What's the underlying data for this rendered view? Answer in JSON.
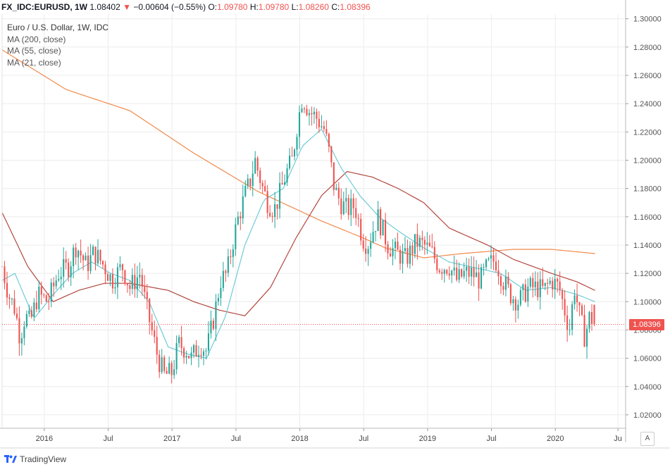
{
  "header": {
    "symbol": "FX_IDC:EURUSD, 1W",
    "last": "1.08402",
    "arrow": "▼",
    "change": "−0.00604 (−0.55%)",
    "o_label": "O:",
    "o_value": "1.09780",
    "h_label": "H:",
    "h_value": "1.09780",
    "l_label": "L:",
    "l_value": "1.08260",
    "c_label": "C:",
    "c_value": "1.08396"
  },
  "legend": {
    "title": "Euro / U.S. Dollar, 1W, IDC",
    "ma200": "MA (200, close)",
    "ma55": "MA (55, close)",
    "ma21": "MA (21, close)"
  },
  "price_tag": "1.08396",
  "scale_button": "A",
  "brand": "TradingView",
  "colors": {
    "up": "#26a69a",
    "down": "#ef5350",
    "ma200": "#f08a4b",
    "ma55": "#b2473e",
    "ma21": "#6fcbd6",
    "grid": "#ececec",
    "axis_text": "#555555"
  },
  "chart_data": {
    "type": "candlestick",
    "y_ticks": [
      "1.30000",
      "1.28000",
      "1.26000",
      "1.24000",
      "1.22000",
      "1.20000",
      "1.18000",
      "1.16000",
      "1.14000",
      "1.12000",
      "1.10000",
      "1.08000",
      "1.06000",
      "1.04000",
      "1.02000"
    ],
    "x_ticks": [
      {
        "label": "2016",
        "t": 0.33
      },
      {
        "label": "Jul",
        "t": 0.83
      },
      {
        "label": "2017",
        "t": 1.33
      },
      {
        "label": "Jul",
        "t": 1.83
      },
      {
        "label": "2018",
        "t": 2.33
      },
      {
        "label": "Jul",
        "t": 2.83
      },
      {
        "label": "2019",
        "t": 3.33
      },
      {
        "label": "Jul",
        "t": 3.83
      },
      {
        "label": "2020",
        "t": 4.33
      },
      {
        "label": "Ju",
        "t": 4.82
      }
    ],
    "ylim": [
      1.0105,
      1.3033
    ],
    "xlim": [
      0,
      4.88
    ],
    "price_anchors": [
      [
        0.0,
        1.125
      ],
      [
        0.05,
        1.105
      ],
      [
        0.1,
        1.095
      ],
      [
        0.14,
        1.075
      ],
      [
        0.18,
        1.09
      ],
      [
        0.22,
        1.085
      ],
      [
        0.28,
        1.105
      ],
      [
        0.36,
        1.1
      ],
      [
        0.44,
        1.12
      ],
      [
        0.52,
        1.125
      ],
      [
        0.58,
        1.14
      ],
      [
        0.66,
        1.125
      ],
      [
        0.72,
        1.135
      ],
      [
        0.8,
        1.125
      ],
      [
        0.86,
        1.115
      ],
      [
        0.94,
        1.125
      ],
      [
        1.0,
        1.11
      ],
      [
        1.08,
        1.12
      ],
      [
        1.12,
        1.1
      ],
      [
        1.17,
        1.08
      ],
      [
        1.22,
        1.06
      ],
      [
        1.27,
        1.048
      ],
      [
        1.33,
        1.05
      ],
      [
        1.38,
        1.07
      ],
      [
        1.44,
        1.066
      ],
      [
        1.48,
        1.06
      ],
      [
        1.55,
        1.07
      ],
      [
        1.6,
        1.065
      ],
      [
        1.66,
        1.09
      ],
      [
        1.71,
        1.115
      ],
      [
        1.76,
        1.12
      ],
      [
        1.8,
        1.14
      ],
      [
        1.85,
        1.16
      ],
      [
        1.9,
        1.175
      ],
      [
        1.94,
        1.185
      ],
      [
        1.98,
        1.2
      ],
      [
        2.04,
        1.18
      ],
      [
        2.08,
        1.17
      ],
      [
        2.13,
        1.165
      ],
      [
        2.17,
        1.175
      ],
      [
        2.22,
        1.19
      ],
      [
        2.27,
        1.2
      ],
      [
        2.31,
        1.225
      ],
      [
        2.35,
        1.245
      ],
      [
        2.4,
        1.235
      ],
      [
        2.46,
        1.23
      ],
      [
        2.52,
        1.222
      ],
      [
        2.56,
        1.205
      ],
      [
        2.6,
        1.18
      ],
      [
        2.65,
        1.17
      ],
      [
        2.7,
        1.165
      ],
      [
        2.76,
        1.168
      ],
      [
        2.82,
        1.145
      ],
      [
        2.86,
        1.14
      ],
      [
        2.9,
        1.15
      ],
      [
        2.94,
        1.16
      ],
      [
        2.98,
        1.15
      ],
      [
        3.02,
        1.14
      ],
      [
        3.08,
        1.135
      ],
      [
        3.16,
        1.13
      ],
      [
        3.24,
        1.142
      ],
      [
        3.3,
        1.14
      ],
      [
        3.36,
        1.135
      ],
      [
        3.42,
        1.125
      ],
      [
        3.5,
        1.125
      ],
      [
        3.56,
        1.115
      ],
      [
        3.62,
        1.12
      ],
      [
        3.68,
        1.12
      ],
      [
        3.74,
        1.115
      ],
      [
        3.8,
        1.125
      ],
      [
        3.86,
        1.13
      ],
      [
        3.92,
        1.115
      ],
      [
        3.98,
        1.105
      ],
      [
        4.04,
        1.1
      ],
      [
        4.12,
        1.11
      ],
      [
        4.18,
        1.11
      ],
      [
        4.24,
        1.108
      ],
      [
        4.3,
        1.115
      ],
      [
        4.36,
        1.11
      ],
      [
        4.4,
        1.095
      ],
      [
        4.44,
        1.08
      ],
      [
        4.48,
        1.11
      ],
      [
        4.52,
        1.09
      ],
      [
        4.56,
        1.075
      ],
      [
        4.6,
        1.09
      ],
      [
        4.64,
        1.084
      ]
    ],
    "ma200": [
      [
        0.0,
        1.278
      ],
      [
        0.5,
        1.25
      ],
      [
        1.0,
        1.235
      ],
      [
        1.5,
        1.205
      ],
      [
        2.0,
        1.178
      ],
      [
        2.5,
        1.157
      ],
      [
        2.8,
        1.146
      ],
      [
        3.0,
        1.138
      ],
      [
        3.3,
        1.131
      ],
      [
        3.6,
        1.134
      ],
      [
        4.0,
        1.137
      ],
      [
        4.3,
        1.137
      ],
      [
        4.64,
        1.134
      ]
    ],
    "ma55": [
      [
        0.0,
        1.163
      ],
      [
        0.2,
        1.125
      ],
      [
        0.4,
        1.1
      ],
      [
        0.6,
        1.108
      ],
      [
        0.8,
        1.113
      ],
      [
        1.0,
        1.113
      ],
      [
        1.3,
        1.108
      ],
      [
        1.5,
        1.1
      ],
      [
        1.7,
        1.094
      ],
      [
        1.9,
        1.09
      ],
      [
        2.1,
        1.11
      ],
      [
        2.3,
        1.145
      ],
      [
        2.5,
        1.175
      ],
      [
        2.7,
        1.192
      ],
      [
        2.9,
        1.188
      ],
      [
        3.1,
        1.18
      ],
      [
        3.3,
        1.17
      ],
      [
        3.5,
        1.152
      ],
      [
        3.8,
        1.14
      ],
      [
        4.0,
        1.13
      ],
      [
        4.3,
        1.12
      ],
      [
        4.5,
        1.114
      ],
      [
        4.64,
        1.108
      ]
    ],
    "ma21": [
      [
        0.0,
        1.115
      ],
      [
        0.1,
        1.12
      ],
      [
        0.25,
        1.088
      ],
      [
        0.4,
        1.105
      ],
      [
        0.55,
        1.12
      ],
      [
        0.7,
        1.128
      ],
      [
        0.85,
        1.12
      ],
      [
        1.0,
        1.115
      ],
      [
        1.15,
        1.1
      ],
      [
        1.3,
        1.068
      ],
      [
        1.45,
        1.063
      ],
      [
        1.6,
        1.06
      ],
      [
        1.75,
        1.09
      ],
      [
        1.9,
        1.14
      ],
      [
        2.05,
        1.172
      ],
      [
        2.2,
        1.18
      ],
      [
        2.35,
        1.21
      ],
      [
        2.5,
        1.222
      ],
      [
        2.65,
        1.195
      ],
      [
        2.8,
        1.175
      ],
      [
        2.95,
        1.16
      ],
      [
        3.1,
        1.15
      ],
      [
        3.3,
        1.138
      ],
      [
        3.5,
        1.128
      ],
      [
        3.7,
        1.124
      ],
      [
        3.9,
        1.12
      ],
      [
        4.1,
        1.108
      ],
      [
        4.3,
        1.11
      ],
      [
        4.5,
        1.105
      ],
      [
        4.64,
        1.1
      ]
    ],
    "last_candle": {
      "open": 1.0978,
      "high": 1.0978,
      "low": 1.0826,
      "close": 1.08396
    }
  }
}
